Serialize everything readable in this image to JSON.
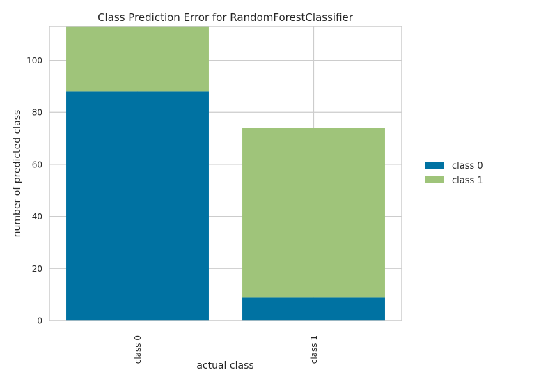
{
  "chart_data": {
    "type": "bar",
    "stacked": true,
    "title": "Class Prediction Error for RandomForestClassifier",
    "xlabel": "actual class",
    "ylabel": "number of predicted class",
    "categories": [
      "class 0",
      "class 1"
    ],
    "series": [
      {
        "name": "class 0",
        "values": [
          88,
          9
        ],
        "color": "#0072a2"
      },
      {
        "name": "class 1",
        "values": [
          25,
          65
        ],
        "color": "#9fc47a"
      }
    ],
    "ylim": [
      0,
      113
    ],
    "yticks": [
      0,
      20,
      40,
      60,
      80,
      100
    ],
    "grid": true,
    "legend_position": "right"
  }
}
